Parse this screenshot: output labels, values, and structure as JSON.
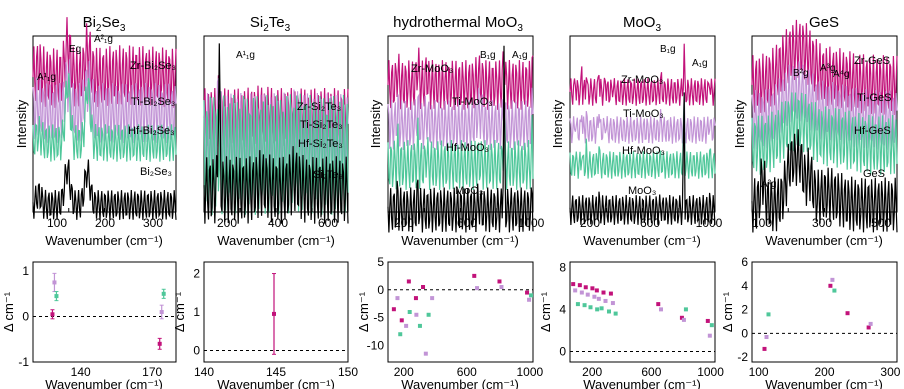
{
  "colors": {
    "zr": "#c2127a",
    "ti": "#c294d6",
    "hf": "#4fc79a",
    "pristine": "#000000"
  },
  "panels": [
    {
      "title_main": "Bi",
      "title_sub": "2",
      "title_rest": "Se",
      "title_sub2": "3",
      "xlabel": "Wavenumber (cm⁻¹)",
      "ylabel": "Intensity",
      "xlim": [
        60,
        360
      ],
      "xticks": [
        "100",
        "200",
        "300"
      ],
      "traces": [
        {
          "name": "Zr-Bi₂Se₃",
          "color_key": "zr"
        },
        {
          "name": "Ti-Bi₂Se₃",
          "color_key": "ti"
        },
        {
          "name": "Hf-Bi₂Se₃",
          "color_key": "hf"
        },
        {
          "name": "Bi₂Se₃",
          "color_key": "pristine"
        }
      ],
      "peaks": [
        "A¹₁g",
        "Eg",
        "A²₁g"
      ]
    },
    {
      "title_main": "Si",
      "title_sub": "2",
      "title_rest": "Te",
      "title_sub2": "3",
      "xlabel": "Wavenumber (cm⁻¹)",
      "xlim": [
        80,
        700
      ],
      "xticks": [
        "200",
        "400",
        "600"
      ],
      "traces": [
        {
          "name": "Zr-Si₂Te₃",
          "color_key": "zr"
        },
        {
          "name": "Ti-Si₂Te₃",
          "color_key": "ti"
        },
        {
          "name": "Hf-Si₂Te₃",
          "color_key": "hf"
        },
        {
          "name": "Si₂Te₃",
          "color_key": "pristine"
        }
      ],
      "peaks": [
        "A¹₁g"
      ]
    },
    {
      "title_main": "hydrothermal MoO",
      "title_sub": "3",
      "xlabel": "Wavenumber (cm⁻¹)",
      "ylabel": "Intensity",
      "xlim": [
        100,
        1000
      ],
      "xticks": [
        "200",
        "600",
        "1000"
      ],
      "traces": [
        {
          "name": "Zr-MoO₃",
          "color_key": "zr"
        },
        {
          "name": "Ti-MoO₃",
          "color_key": "ti"
        },
        {
          "name": "Hf-MoO₃",
          "color_key": "hf"
        },
        {
          "name": "MoO₃",
          "color_key": "pristine"
        }
      ],
      "peaks": [
        "B₁g",
        "A₁g"
      ]
    },
    {
      "title_main": "MoO",
      "title_sub": "3",
      "xlabel": "Wavenumber (cm⁻¹)",
      "ylabel": "Intensity",
      "xlim": [
        50,
        1030
      ],
      "xticks": [
        "200",
        "600",
        "1000"
      ],
      "traces": [
        {
          "name": "Zr-MoO₃",
          "color_key": "zr"
        },
        {
          "name": "Ti-MoO₃",
          "color_key": "ti"
        },
        {
          "name": "Hf-MoO₃",
          "color_key": "hf"
        },
        {
          "name": "MoO₃",
          "color_key": "pristine"
        }
      ],
      "peaks": [
        "B₁g",
        "A₁g"
      ]
    },
    {
      "title_main": "GeS",
      "xlabel": "Wavenumber (cm⁻¹)",
      "ylabel": "Intensity",
      "xlim": [
        80,
        560
      ],
      "xticks": [
        "100",
        "300",
        "500"
      ],
      "traces": [
        {
          "name": "Zr-GeS",
          "color_key": "zr"
        },
        {
          "name": "Ti-GeS",
          "color_key": "ti"
        },
        {
          "name": "Hf-GeS",
          "color_key": "hf"
        },
        {
          "name": "GeS",
          "color_key": "pristine"
        }
      ],
      "peaks": [
        "B²g",
        "A³g",
        "A⁴g",
        "A²g"
      ]
    }
  ],
  "chart_data": [
    {
      "type": "line",
      "panel": "Bi2Se3 Raman",
      "x_peaks": [
        72,
        132,
        174
      ],
      "series": [
        {
          "name": "Zr-Bi₂Se₃",
          "peaks": [
            [
              72,
              0.12
            ],
            [
              133,
              0.6
            ],
            [
              175,
              0.55
            ]
          ]
        },
        {
          "name": "Ti-Bi₂Se₃",
          "peaks": [
            [
              72,
              0.1
            ],
            [
              133,
              0.55
            ],
            [
              175,
              0.5
            ]
          ]
        },
        {
          "name": "Hf-Bi₂Se₃",
          "peaks": [
            [
              72,
              0.15
            ],
            [
              133,
              0.9
            ],
            [
              175,
              0.85
            ]
          ]
        },
        {
          "name": "Bi₂Se₃",
          "peaks": [
            [
              72,
              0.12
            ],
            [
              132,
              0.6
            ],
            [
              174,
              0.55
            ]
          ]
        }
      ]
    },
    {
      "type": "line",
      "panel": "Si2Te3 Raman",
      "x_peaks": [
        145
      ],
      "series": [
        {
          "name": "Zr-Si₂Te₃",
          "peaks": [
            [
              145,
              0.15
            ]
          ]
        },
        {
          "name": "Ti-Si₂Te₃",
          "peaks": [
            [
              145,
              0.3
            ]
          ]
        },
        {
          "name": "Hf-Si₂Te₃",
          "peaks": [
            [
              145,
              0.15
            ]
          ]
        },
        {
          "name": "Si₂Te₃",
          "peaks": [
            [
              145,
              1.0
            ]
          ]
        }
      ]
    },
    {
      "type": "line",
      "panel": "hydrothermal MoO3 Raman",
      "x_peaks": [
        820,
        995
      ]
    },
    {
      "type": "line",
      "panel": "MoO3 Raman",
      "x_peaks": [
        820,
        995
      ]
    },
    {
      "type": "line",
      "panel": "GeS Raman",
      "x_peaks": [
        115,
        212,
        240,
        270
      ]
    },
    {
      "type": "scatter",
      "panel": "Bi2Se3 shift",
      "ylabel": "Δ cm⁻¹",
      "xlim": [
        120,
        180
      ],
      "ylim": [
        -1,
        1.2
      ],
      "yticks": [
        "-1",
        "0",
        "1"
      ],
      "xticks": [
        "140",
        "170"
      ],
      "series": [
        {
          "name": "Zr",
          "color_key": "zr",
          "points": [
            [
              129,
              0.05,
              0.1
            ],
            [
              174,
              -0.6,
              0.12
            ]
          ]
        },
        {
          "name": "Ti",
          "color_key": "ti",
          "points": [
            [
              129,
              0.75,
              0.2
            ],
            [
              174,
              0.1,
              0.15
            ]
          ]
        },
        {
          "name": "Hf",
          "color_key": "hf",
          "points": [
            [
              129,
              0.45,
              0.1
            ],
            [
              174,
              0.5,
              0.1
            ]
          ]
        }
      ]
    },
    {
      "type": "scatter",
      "panel": "Si2Te3 shift",
      "ylabel": "Δ cm⁻¹",
      "xlim": [
        140,
        150
      ],
      "ylim": [
        -0.3,
        2.3
      ],
      "yticks": [
        "0",
        "1",
        "2"
      ],
      "xticks": [
        "140",
        "145",
        "150"
      ],
      "series": [
        {
          "name": "Zr",
          "color_key": "zr",
          "points": [
            [
              145,
              0.95,
              1.05
            ]
          ]
        }
      ]
    },
    {
      "type": "scatter",
      "panel": "hydrothermal MoO3 shift",
      "ylabel": "Δ cm⁻¹",
      "xlim": [
        100,
        1020
      ],
      "ylim": [
        -13,
        5
      ],
      "yticks": [
        "-10",
        "-5",
        "0",
        "5"
      ],
      "xticks": [
        "200",
        "600",
        "1000"
      ],
      "series": [
        {
          "name": "Zr",
          "color_key": "zr",
          "points": [
            [
              150,
              -3.5
            ],
            [
              200,
              -5.5
            ],
            [
              245,
              1.5
            ],
            [
              290,
              -1.5
            ],
            [
              335,
              0.5
            ],
            [
              660,
              2.5
            ],
            [
              820,
              1.5
            ],
            [
              995,
              -0.5
            ]
          ]
        },
        {
          "name": "Ti",
          "color_key": "ti",
          "points": [
            [
              160,
              -1.5
            ],
            [
              215,
              -6.5
            ],
            [
              280,
              -4.5
            ],
            [
              340,
              -11.5
            ],
            [
              380,
              -1.5
            ],
            [
              665,
              0.3
            ],
            [
              820,
              0.5
            ],
            [
              995,
              -1.8
            ]
          ]
        },
        {
          "name": "Hf",
          "color_key": "hf",
          "points": [
            [
              165,
              -8.0
            ],
            [
              225,
              -4.0
            ],
            [
              290,
              -6.5
            ],
            [
              345,
              -4.5
            ],
            [
              995,
              -1.0
            ]
          ]
        }
      ]
    },
    {
      "type": "scatter",
      "panel": "MoO3 shift",
      "ylabel": "Δ cm⁻¹",
      "xlim": [
        50,
        1030
      ],
      "ylim": [
        -1,
        8.5
      ],
      "yticks": [
        "0",
        "4",
        "8"
      ],
      "xticks": [
        "200",
        "600",
        "1000"
      ],
      "series": [
        {
          "name": "Zr",
          "color_key": "zr",
          "points": [
            [
              85,
              6.4
            ],
            [
              130,
              6.3
            ],
            [
              170,
              6.1
            ],
            [
              215,
              6.0
            ],
            [
              245,
              5.8
            ],
            [
              290,
              5.6
            ],
            [
              340,
              5.5
            ],
            [
              660,
              4.5
            ],
            [
              820,
              3.2
            ],
            [
              995,
              2.9
            ]
          ]
        },
        {
          "name": "Ti",
          "color_key": "ti",
          "points": [
            [
              85,
              5.8
            ],
            [
              130,
              5.6
            ],
            [
              170,
              5.4
            ],
            [
              215,
              5.2
            ],
            [
              245,
              5.0
            ],
            [
              290,
              4.8
            ],
            [
              340,
              4.6
            ],
            [
              665,
              4.0
            ],
            [
              820,
              3.0
            ],
            [
              995,
              1.5
            ]
          ]
        },
        {
          "name": "Hf",
          "color_key": "hf",
          "points": [
            [
              90,
              4.5
            ],
            [
              135,
              4.4
            ],
            [
              175,
              4.2
            ],
            [
              220,
              4.0
            ],
            [
              250,
              4.1
            ],
            [
              300,
              3.8
            ],
            [
              345,
              3.6
            ],
            [
              820,
              4.0
            ],
            [
              995,
              2.5
            ]
          ]
        }
      ]
    },
    {
      "type": "scatter",
      "panel": "GeS shift",
      "ylabel": "Δ cm⁻¹",
      "xlim": [
        90,
        310
      ],
      "ylim": [
        -2.4,
        6
      ],
      "yticks": [
        "-2",
        "0",
        "2",
        "4",
        "6"
      ],
      "xticks": [
        "100",
        "200",
        "300"
      ],
      "series": [
        {
          "name": "Zr",
          "color_key": "zr",
          "points": [
            [
              112,
              -1.3
            ],
            [
              212,
              4.0
            ],
            [
              238,
              1.7
            ],
            [
              270,
              0.5
            ]
          ]
        },
        {
          "name": "Ti",
          "color_key": "ti",
          "points": [
            [
              112,
              -0.3
            ],
            [
              212,
              4.5
            ],
            [
              270,
              0.8
            ]
          ]
        },
        {
          "name": "Hf",
          "color_key": "hf",
          "points": [
            [
              112,
              1.6
            ],
            [
              212,
              3.6
            ]
          ]
        }
      ]
    }
  ]
}
